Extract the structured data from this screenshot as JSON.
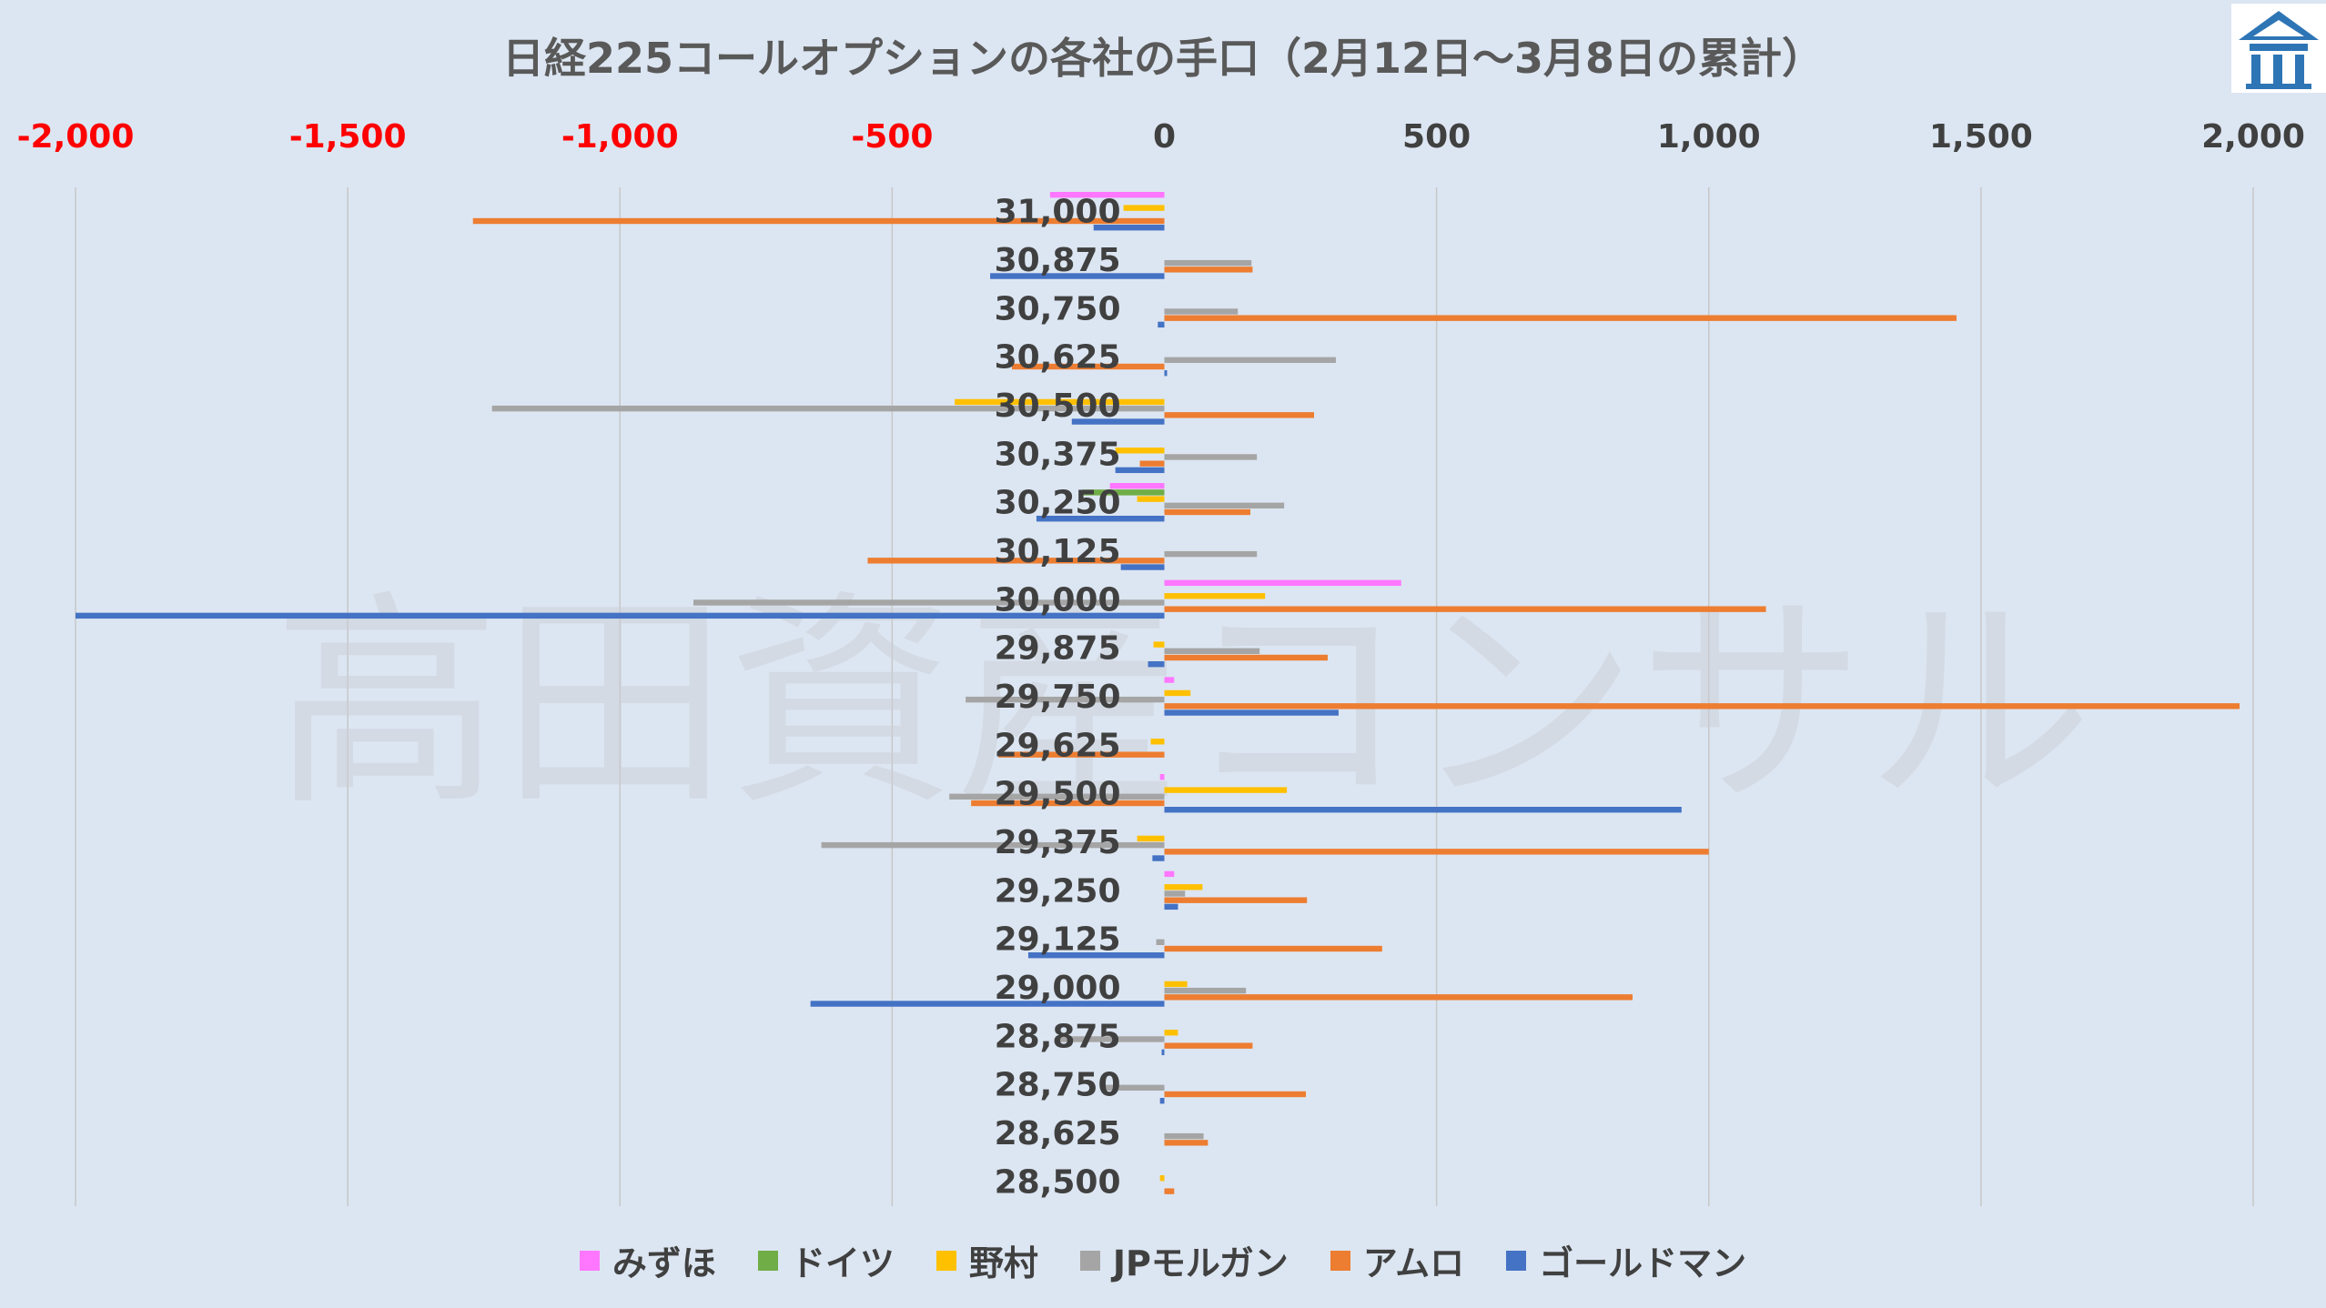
{
  "watermark": "高田資産コンサル",
  "colors": {
    "background": "#dce6f2",
    "gridline": "#c7c7c7",
    "negative_tick": "#ff0000",
    "positive_tick": "#404040",
    "logo": "#2e75b6"
  },
  "chart_data": {
    "type": "bar",
    "orientation": "horizontal",
    "title": "日経225コールオプションの各社の手口（2月12日～3月8日の累計）",
    "xlim": [
      -2000,
      2000
    ],
    "xticks": [
      -2000,
      -1500,
      -1000,
      -500,
      0,
      500,
      1000,
      1500,
      2000
    ],
    "xtick_labels": [
      "-2,000",
      "-1,500",
      "-1,000",
      "-500",
      "0",
      "500",
      "1,000",
      "1,500",
      "2,000"
    ],
    "grid": true,
    "legend_position": "bottom",
    "categories": [
      "31,000",
      "30,875",
      "30,750",
      "30,625",
      "30,500",
      "30,375",
      "30,250",
      "30,125",
      "30,000",
      "29,875",
      "29,750",
      "29,625",
      "29,500",
      "29,375",
      "29,250",
      "29,125",
      "29,000",
      "28,875",
      "28,750",
      "28,625",
      "28,500"
    ],
    "series": [
      {
        "name": "みずほ",
        "color": "#ff77ff",
        "values": [
          -210,
          0,
          0,
          0,
          0,
          0,
          -100,
          0,
          435,
          0,
          18,
          0,
          -8,
          0,
          18,
          0,
          0,
          0,
          0,
          0,
          0
        ]
      },
      {
        "name": "ドイツ",
        "color": "#70ad47",
        "values": [
          0,
          0,
          0,
          0,
          0,
          0,
          -150,
          0,
          0,
          0,
          0,
          0,
          0,
          0,
          0,
          0,
          0,
          0,
          0,
          0,
          0
        ]
      },
      {
        "name": "野村",
        "color": "#ffc000",
        "values": [
          -75,
          0,
          0,
          0,
          -385,
          -90,
          -50,
          0,
          185,
          -20,
          48,
          -25,
          225,
          -50,
          70,
          0,
          42,
          25,
          0,
          0,
          -8
        ]
      },
      {
        "name": "JPモルガン",
        "color": "#a5a5a5",
        "values": [
          0,
          160,
          135,
          315,
          -1235,
          170,
          220,
          170,
          -865,
          175,
          -365,
          0,
          -395,
          -630,
          38,
          -15,
          150,
          -200,
          -110,
          72,
          0
        ]
      },
      {
        "name": "アムロ",
        "color": "#ed7d31",
        "values": [
          -1270,
          162,
          1455,
          -280,
          275,
          -45,
          158,
          -545,
          1105,
          300,
          1975,
          -305,
          -355,
          1000,
          262,
          400,
          860,
          162,
          260,
          80,
          18
        ]
      },
      {
        "name": "ゴールドマン",
        "color": "#4472c4",
        "values": [
          -130,
          -320,
          -12,
          5,
          -170,
          -90,
          -235,
          -80,
          -2000,
          -30,
          320,
          0,
          950,
          -22,
          25,
          -250,
          -650,
          -5,
          -8,
          0,
          0
        ]
      }
    ]
  }
}
